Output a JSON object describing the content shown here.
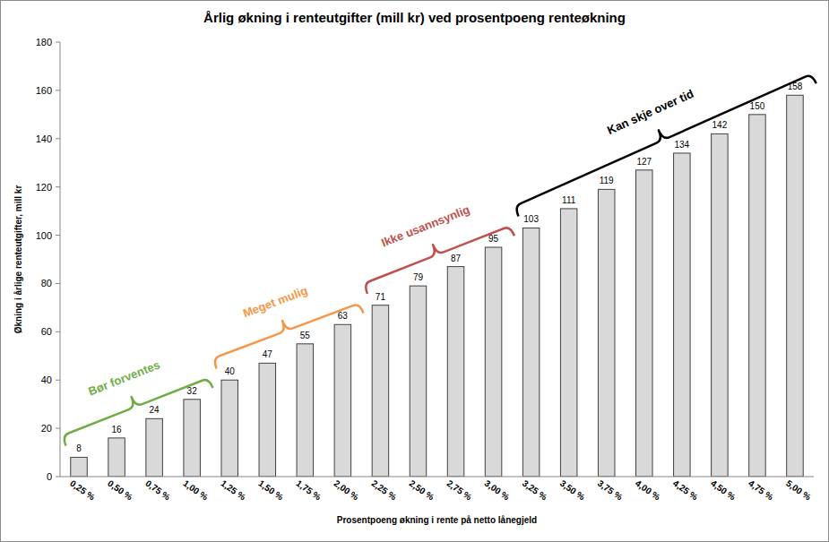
{
  "chart_data": {
    "type": "bar",
    "title": "Årlig økning i renteutgifter (mill kr) ved prosentpoeng renteøkning",
    "x_label": "Prosentpoeng økning i rente på netto lånegjeld",
    "y_label": "Økning i årlige renteutgifter, mill kr",
    "categories": [
      "0,25 %",
      "0,50 %",
      "0,75 %",
      "1,00 %",
      "1,25 %",
      "1,50 %",
      "1,75 %",
      "2,00 %",
      "2,25 %",
      "2,50 %",
      "2,75 %",
      "3,00 %",
      "3,25 %",
      "3,50 %",
      "3,75 %",
      "4,00 %",
      "4,25 %",
      "4,50 %",
      "4,75 %",
      "5,00 %"
    ],
    "values": [
      8,
      16,
      24,
      32,
      40,
      47,
      55,
      63,
      71,
      79,
      87,
      95,
      103,
      111,
      119,
      127,
      134,
      142,
      150,
      158
    ],
    "color": "#d9d9d9",
    "ylim": [
      0,
      180
    ],
    "yticks": [
      0,
      20,
      40,
      60,
      80,
      100,
      120,
      140,
      160,
      180
    ],
    "grid": false,
    "data_labels": true,
    "annotations": [
      {
        "text": "Bør forventes",
        "color": "#70ad47",
        "from": "0,25 %",
        "to": "1,00 %"
      },
      {
        "text": "Meget mulig",
        "color": "#f79646",
        "from": "1,25 %",
        "to": "2,00 %"
      },
      {
        "text": "Ikke usannsynlig",
        "color": "#c0504d",
        "from": "2,25 %",
        "to": "3,00 %"
      },
      {
        "text": "Kan skje over tid",
        "color": "#000000",
        "from": "3,25 %",
        "to": "5,00 %"
      }
    ]
  }
}
